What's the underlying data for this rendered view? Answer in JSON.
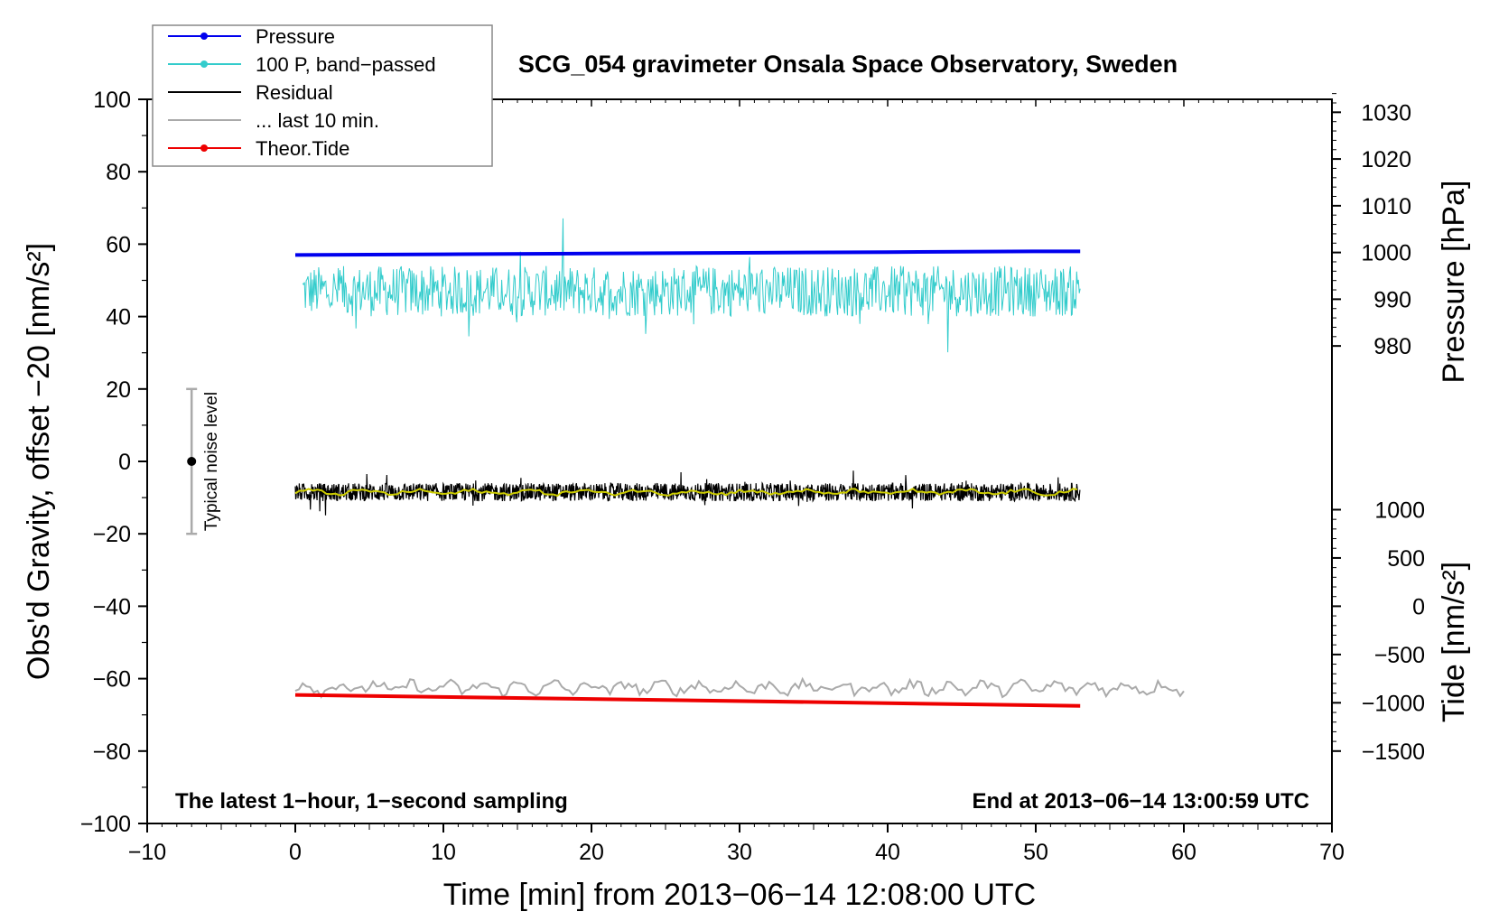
{
  "chart_data": {
    "type": "line",
    "title": "SCG_054 gravimeter Onsala Space Observatory, Sweden",
    "xlabel": "Time [min] from 2013−06−14 12:08:00 UTC",
    "ylabel_left": "Obs'd Gravity, offset −20 [nm/s²]",
    "ylabel_right_pressure": "Pressure [hPa]",
    "ylabel_right_tide": "Tide [nm/s²]",
    "xlim": [
      -10,
      70
    ],
    "ylim": [
      -100,
      100
    ],
    "x_ticks": [
      "−10",
      "0",
      "10",
      "20",
      "30",
      "40",
      "50",
      "60",
      "70"
    ],
    "x_tick_values": [
      -10,
      0,
      10,
      20,
      30,
      40,
      50,
      60,
      70
    ],
    "y_ticks": [
      "100",
      "80",
      "60",
      "40",
      "20",
      "0",
      "−20",
      "−40",
      "−60",
      "−80",
      "−100"
    ],
    "y_tick_values": [
      100,
      80,
      60,
      40,
      20,
      0,
      -20,
      -40,
      -60,
      -80,
      -100
    ],
    "pressure_axis": {
      "ticks": [
        "1030",
        "1020",
        "1010",
        "1000",
        "990",
        "980"
      ],
      "values": [
        1030,
        1020,
        1010,
        1000,
        990,
        980
      ],
      "hpa_at_left_0": 955.3,
      "hpa_per_left_unit": 0.7747
    },
    "tide_axis": {
      "ticks": [
        "1000",
        "500",
        "0",
        "−500",
        "−1000",
        "−1500"
      ],
      "values": [
        1000,
        500,
        0,
        -500,
        -1000,
        -1500
      ],
      "tide_at_left_0": 1500,
      "tide_per_left_unit": 37.5
    },
    "legend": [
      {
        "label": "Pressure",
        "color": "#0000ee",
        "marker": true
      },
      {
        "label": "100 P, band−passed",
        "color": "#33cccc",
        "marker": true
      },
      {
        "label": "Residual",
        "color": "#000000",
        "marker": false
      },
      {
        "label": "... last 10 min.",
        "color": "#aaaaaa",
        "marker": false
      },
      {
        "label": "Theor.Tide",
        "color": "#ee0000",
        "marker": true
      }
    ],
    "series": [
      {
        "name": "Pressure",
        "color": "#0000ee",
        "x": [
          0,
          10,
          20,
          30,
          40,
          50,
          53
        ],
        "y": [
          57.0,
          57.2,
          57.4,
          57.6,
          57.8,
          58.0,
          58.0
        ]
      },
      {
        "name": "100 P, band−passed",
        "color": "#33cccc",
        "x_range": [
          0.5,
          53
        ],
        "y_center": 47,
        "y_noise": 7
      },
      {
        "name": "Residual",
        "color": "#000000",
        "x_range": [
          0,
          53
        ],
        "y_center": -8.5,
        "y_noise": 2.5
      },
      {
        "name": "... last 10 min.",
        "color": "#aaaaaa",
        "x_range": [
          0,
          60
        ],
        "y_center": -62.5,
        "y_noise": 2
      },
      {
        "name": "Theor.Tide",
        "color": "#ee0000",
        "x": [
          0,
          53
        ],
        "y": [
          -64.5,
          -67.5
        ]
      }
    ],
    "smoothed_residual_color": "#cccc00",
    "noise_bar": {
      "label": "Typical noise level",
      "x": -7,
      "ylim": [
        -20,
        20
      ],
      "center": 0
    },
    "annotation_left": "The latest 1−hour, 1−second sampling",
    "annotation_right": "End at 2013−06−14 13:00:59 UTC"
  }
}
